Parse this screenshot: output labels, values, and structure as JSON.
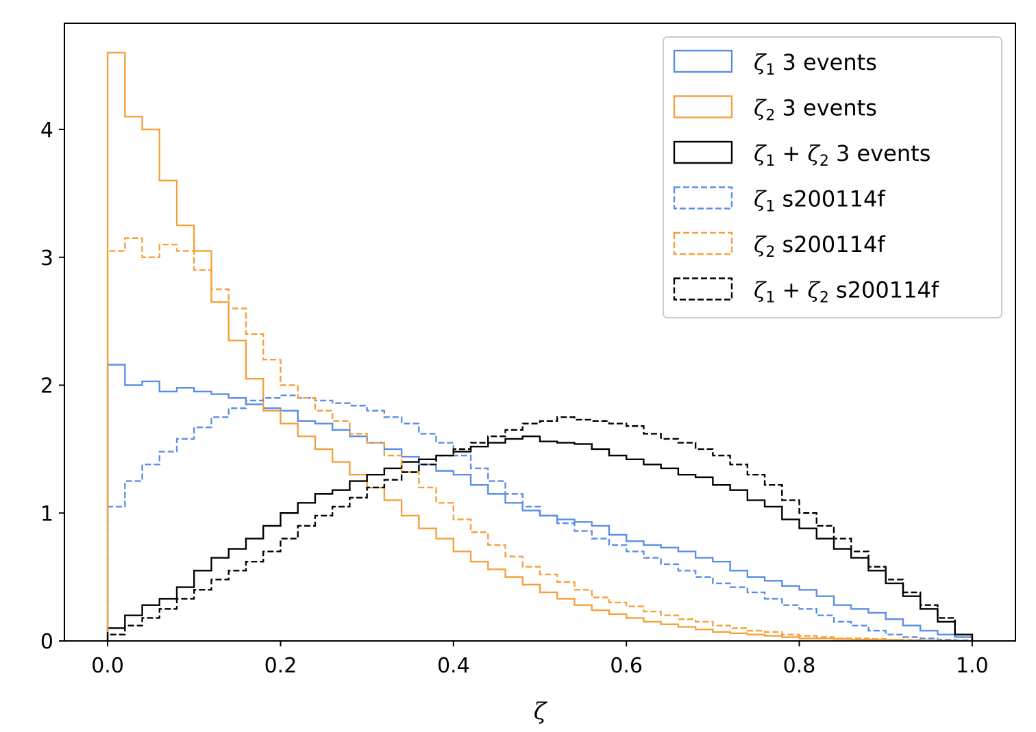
{
  "chart_data": {
    "type": "histogram-step",
    "title": "",
    "xlabel": "ζ",
    "ylabel": "",
    "xlim": [
      -0.05,
      1.05
    ],
    "ylim": [
      0,
      4.83
    ],
    "grid": false,
    "legend_position": "top-right",
    "x_ticks": [
      {
        "value": 0.0,
        "label": "0.0"
      },
      {
        "value": 0.2,
        "label": "0.2"
      },
      {
        "value": 0.4,
        "label": "0.4"
      },
      {
        "value": 0.6,
        "label": "0.6"
      },
      {
        "value": 0.8,
        "label": "0.8"
      },
      {
        "value": 1.0,
        "label": "1.0"
      }
    ],
    "y_ticks": [
      {
        "value": 0,
        "label": "0"
      },
      {
        "value": 1,
        "label": "1"
      },
      {
        "value": 2,
        "label": "2"
      },
      {
        "value": 3,
        "label": "3"
      },
      {
        "value": 4,
        "label": "4"
      }
    ],
    "bins": {
      "start": 0.0,
      "end": 1.0,
      "count": 50
    },
    "series": [
      {
        "name": "ζ1 3 events",
        "legend": {
          "base": "ζ",
          "sub": "1",
          "rest": " 3 events"
        },
        "color": "#5b8ee6",
        "style": "solid",
        "values": [
          2.16,
          2.0,
          2.03,
          1.95,
          1.98,
          1.95,
          1.93,
          1.9,
          1.85,
          1.82,
          1.8,
          1.72,
          1.7,
          1.65,
          1.6,
          1.55,
          1.5,
          1.44,
          1.38,
          1.33,
          1.3,
          1.22,
          1.15,
          1.08,
          1.02,
          0.98,
          0.95,
          0.93,
          0.9,
          0.83,
          0.78,
          0.75,
          0.73,
          0.7,
          0.65,
          0.62,
          0.55,
          0.5,
          0.47,
          0.43,
          0.4,
          0.35,
          0.28,
          0.25,
          0.22,
          0.17,
          0.12,
          0.08,
          0.05,
          0.03
        ]
      },
      {
        "name": "ζ2 3 events",
        "legend": {
          "base": "ζ",
          "sub": "2",
          "rest": " 3 events"
        },
        "color": "#f5a03a",
        "style": "solid",
        "values": [
          4.6,
          4.1,
          4.0,
          3.6,
          3.25,
          3.05,
          2.65,
          2.35,
          2.05,
          1.8,
          1.7,
          1.6,
          1.5,
          1.4,
          1.3,
          1.2,
          1.1,
          0.98,
          0.88,
          0.8,
          0.7,
          0.62,
          0.56,
          0.5,
          0.44,
          0.38,
          0.33,
          0.28,
          0.24,
          0.21,
          0.18,
          0.15,
          0.13,
          0.11,
          0.09,
          0.07,
          0.06,
          0.05,
          0.04,
          0.03,
          0.02,
          0.02,
          0.015,
          0.01,
          0.01,
          0.008,
          0.005,
          0.003,
          0.002,
          0.001
        ]
      },
      {
        "name": "ζ1 + ζ2 3 events",
        "legend": {
          "base": "ζ",
          "sub": "1",
          "plus": " + ",
          "base2": "ζ",
          "sub2": "2",
          "rest": " 3 events"
        },
        "color": "#000000",
        "style": "solid",
        "values": [
          0.1,
          0.2,
          0.28,
          0.33,
          0.42,
          0.55,
          0.65,
          0.72,
          0.8,
          0.9,
          1.0,
          1.08,
          1.15,
          1.18,
          1.25,
          1.3,
          1.35,
          1.4,
          1.42,
          1.45,
          1.48,
          1.52,
          1.55,
          1.58,
          1.6,
          1.56,
          1.55,
          1.54,
          1.5,
          1.45,
          1.42,
          1.38,
          1.35,
          1.3,
          1.28,
          1.22,
          1.18,
          1.1,
          1.05,
          0.95,
          0.88,
          0.8,
          0.72,
          0.65,
          0.55,
          0.45,
          0.35,
          0.25,
          0.15,
          0.05
        ]
      },
      {
        "name": "ζ1 s200114f",
        "legend": {
          "base": "ζ",
          "sub": "1",
          "rest": " s200114f"
        },
        "color": "#5b8ee6",
        "style": "dashed",
        "values": [
          1.05,
          1.25,
          1.38,
          1.48,
          1.58,
          1.67,
          1.75,
          1.82,
          1.88,
          1.9,
          1.92,
          1.9,
          1.88,
          1.86,
          1.84,
          1.8,
          1.75,
          1.7,
          1.62,
          1.55,
          1.45,
          1.35,
          1.25,
          1.15,
          1.05,
          0.98,
          0.92,
          0.86,
          0.8,
          0.75,
          0.7,
          0.65,
          0.6,
          0.55,
          0.5,
          0.45,
          0.42,
          0.38,
          0.33,
          0.28,
          0.25,
          0.2,
          0.15,
          0.12,
          0.08,
          0.05,
          0.03,
          0.02,
          0.01,
          0.005
        ]
      },
      {
        "name": "ζ2 s200114f",
        "legend": {
          "base": "ζ",
          "sub": "2",
          "rest": " s200114f"
        },
        "color": "#f5a03a",
        "style": "dashed",
        "values": [
          3.05,
          3.15,
          3.0,
          3.1,
          3.05,
          2.9,
          2.75,
          2.6,
          2.4,
          2.2,
          2.0,
          1.9,
          1.8,
          1.72,
          1.62,
          1.55,
          1.45,
          1.32,
          1.2,
          1.08,
          0.95,
          0.85,
          0.75,
          0.66,
          0.58,
          0.52,
          0.46,
          0.4,
          0.34,
          0.3,
          0.27,
          0.23,
          0.2,
          0.17,
          0.15,
          0.12,
          0.1,
          0.08,
          0.07,
          0.05,
          0.04,
          0.03,
          0.02,
          0.02,
          0.015,
          0.01,
          0.008,
          0.005,
          0.003,
          0.001
        ]
      },
      {
        "name": "ζ1 + ζ2 s200114f",
        "legend": {
          "base": "ζ",
          "sub": "1",
          "plus": " + ",
          "base2": "ζ",
          "sub2": "2",
          "rest": " s200114f"
        },
        "color": "#000000",
        "style": "dashed",
        "values": [
          0.05,
          0.12,
          0.18,
          0.25,
          0.33,
          0.4,
          0.48,
          0.55,
          0.62,
          0.7,
          0.8,
          0.9,
          0.98,
          1.05,
          1.12,
          1.2,
          1.26,
          1.32,
          1.38,
          1.45,
          1.5,
          1.55,
          1.6,
          1.65,
          1.7,
          1.72,
          1.75,
          1.73,
          1.72,
          1.7,
          1.68,
          1.62,
          1.58,
          1.55,
          1.5,
          1.45,
          1.38,
          1.3,
          1.22,
          1.1,
          1.0,
          0.9,
          0.8,
          0.7,
          0.58,
          0.48,
          0.38,
          0.28,
          0.18,
          0.05
        ]
      }
    ]
  }
}
